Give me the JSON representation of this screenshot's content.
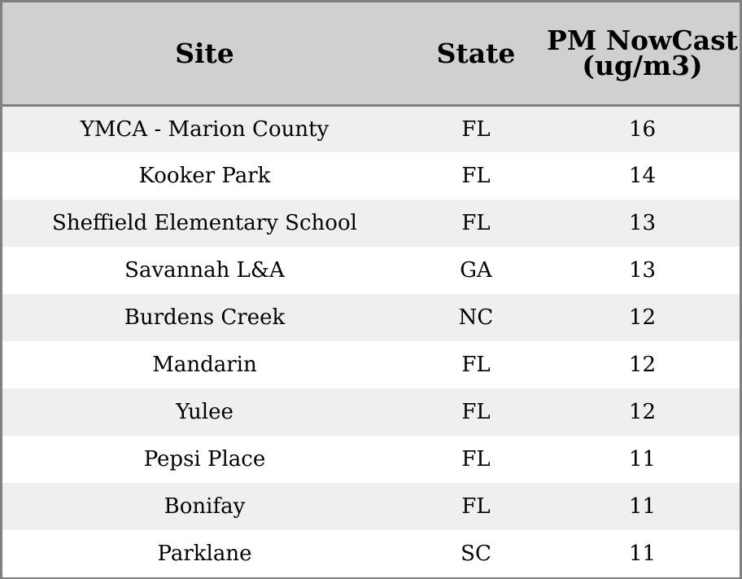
{
  "chart_data": {
    "type": "table",
    "columns": [
      "Site",
      "State",
      "PM NowCast (ug/m3)"
    ],
    "rows": [
      [
        "YMCA - Marion County",
        "FL",
        16
      ],
      [
        "Kooker Park",
        "FL",
        14
      ],
      [
        "Sheffield Elementary School",
        "FL",
        13
      ],
      [
        "Savannah L&A",
        "GA",
        13
      ],
      [
        "Burdens Creek",
        "NC",
        12
      ],
      [
        "Mandarin",
        "FL",
        12
      ],
      [
        "Yulee",
        "FL",
        12
      ],
      [
        "Pepsi Place",
        "FL",
        11
      ],
      [
        "Bonifay",
        "FL",
        11
      ],
      [
        "Parklane",
        "SC",
        11
      ]
    ]
  },
  "colors": {
    "header_bg": "#d0d0d0",
    "stripe_bg": "#efefef",
    "border": "#808080"
  }
}
